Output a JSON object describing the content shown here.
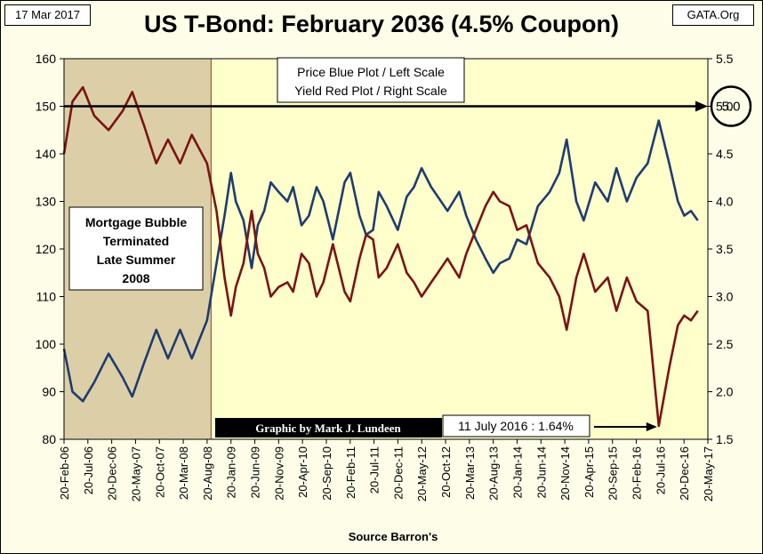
{
  "header": {
    "date": "17 Mar 2017",
    "source": "GATA.Org"
  },
  "chart_data": {
    "type": "line",
    "title": "US T-Bond: February 2036 (4.5% Coupon)",
    "xlabel": "Source Barron's",
    "legend_lines": [
      "Price Blue Plot / Left Scale",
      "Yield Red Plot / Right Scale"
    ],
    "left_axis": {
      "ylim": [
        80,
        160
      ],
      "ticks": [
        "80",
        "90",
        "100",
        "110",
        "120",
        "130",
        "140",
        "150",
        "160"
      ]
    },
    "right_axis": {
      "ylim": [
        1.5,
        5.5
      ],
      "ticks": [
        "1.5",
        "2.0",
        "2.5",
        "3.0",
        "3.5",
        "4.0",
        "4.5",
        "5.0",
        "5.5"
      ]
    },
    "x_ticks": [
      "20-Feb-06",
      "20-Jul-06",
      "20-Dec-06",
      "20-May-07",
      "20-Oct-07",
      "20-Mar-08",
      "20-Aug-08",
      "20-Jan-09",
      "20-Jun-09",
      "20-Nov-09",
      "20-Apr-10",
      "20-Sep-10",
      "20-Feb-11",
      "20-Jul-11",
      "20-Dec-11",
      "20-May-12",
      "20-Oct-12",
      "20-Mar-13",
      "20-Aug-13",
      "20-Jan-14",
      "20-Jun-14",
      "20-Nov-14",
      "20-Apr-15",
      "20-Sep-15",
      "20-Feb-16",
      "20-Jul-16",
      "20-Dec-16",
      "20-May-17"
    ],
    "grid": false,
    "series": [
      {
        "name": "Price Blue Plot / Left Scale",
        "color": "#1f3c6e",
        "axis": "left",
        "x": [
          "2006-02-20",
          "2006-04-15",
          "2006-06-20",
          "2006-09-01",
          "2006-12-01",
          "2007-03-01",
          "2007-05-01",
          "2007-07-15",
          "2007-10-01",
          "2007-12-15",
          "2008-03-01",
          "2008-05-15",
          "2008-08-20",
          "2008-10-20",
          "2008-12-10",
          "2009-01-20",
          "2009-02-20",
          "2009-04-10",
          "2009-06-01",
          "2009-07-10",
          "2009-08-20",
          "2009-10-01",
          "2009-11-20",
          "2010-01-15",
          "2010-02-20",
          "2010-04-15",
          "2010-06-01",
          "2010-07-20",
          "2010-09-01",
          "2010-11-01",
          "2011-01-15",
          "2011-02-20",
          "2011-04-20",
          "2011-06-01",
          "2011-07-15",
          "2011-08-20",
          "2011-10-10",
          "2011-12-20",
          "2012-02-15",
          "2012-04-01",
          "2012-05-20",
          "2012-07-20",
          "2012-09-01",
          "2012-11-01",
          "2013-01-15",
          "2013-03-01",
          "2013-05-01",
          "2013-07-01",
          "2013-08-20",
          "2013-10-01",
          "2013-12-01",
          "2014-01-20",
          "2014-03-20",
          "2014-06-01",
          "2014-08-15",
          "2014-10-15",
          "2014-12-01",
          "2015-02-01",
          "2015-03-20",
          "2015-06-01",
          "2015-08-20",
          "2015-10-15",
          "2015-12-20",
          "2016-02-20",
          "2016-05-01",
          "2016-07-11",
          "2016-09-15",
          "2016-11-10",
          "2016-12-20",
          "2017-02-01",
          "2017-03-17"
        ],
        "values": [
          99,
          90,
          88,
          92,
          98,
          93,
          89,
          96,
          103,
          97,
          103,
          97,
          105,
          117,
          127,
          136,
          130,
          126,
          116,
          125,
          128,
          134,
          132,
          130,
          133,
          125,
          127,
          133,
          130,
          122,
          134,
          136,
          127,
          123,
          124,
          132,
          129,
          124,
          131,
          133,
          137,
          133,
          131,
          128,
          132,
          127,
          122,
          118,
          115,
          117,
          118,
          122,
          121,
          129,
          132,
          136,
          143,
          130,
          126,
          134,
          130,
          137,
          130,
          135,
          138,
          147,
          138,
          130,
          127,
          128,
          126
        ]
      },
      {
        "name": "Yield Red Plot / Right Scale",
        "color": "#7a1414",
        "axis": "right",
        "x": [
          "2006-02-20",
          "2006-04-15",
          "2006-06-20",
          "2006-09-01",
          "2006-12-01",
          "2007-03-01",
          "2007-05-01",
          "2007-07-15",
          "2007-10-01",
          "2007-12-15",
          "2008-03-01",
          "2008-05-15",
          "2008-08-20",
          "2008-10-20",
          "2008-12-10",
          "2009-01-20",
          "2009-02-20",
          "2009-04-10",
          "2009-06-01",
          "2009-07-10",
          "2009-08-20",
          "2009-10-01",
          "2009-11-20",
          "2010-01-15",
          "2010-02-20",
          "2010-04-15",
          "2010-06-01",
          "2010-07-20",
          "2010-09-01",
          "2010-11-01",
          "2011-01-15",
          "2011-02-20",
          "2011-04-20",
          "2011-06-01",
          "2011-07-15",
          "2011-08-20",
          "2011-10-10",
          "2011-12-20",
          "2012-02-15",
          "2012-04-01",
          "2012-05-20",
          "2012-07-20",
          "2012-09-01",
          "2012-11-01",
          "2013-01-15",
          "2013-03-01",
          "2013-05-01",
          "2013-07-01",
          "2013-08-20",
          "2013-10-01",
          "2013-12-01",
          "2014-01-20",
          "2014-03-20",
          "2014-06-01",
          "2014-08-15",
          "2014-10-15",
          "2014-12-01",
          "2015-02-01",
          "2015-03-20",
          "2015-06-01",
          "2015-08-20",
          "2015-10-15",
          "2015-12-20",
          "2016-02-20",
          "2016-05-01",
          "2016-07-11",
          "2016-09-15",
          "2016-11-10",
          "2016-12-20",
          "2017-02-01",
          "2017-03-17"
        ],
        "values": [
          4.5,
          5.05,
          5.2,
          4.9,
          4.75,
          4.95,
          5.15,
          4.8,
          4.4,
          4.65,
          4.4,
          4.7,
          4.4,
          3.9,
          3.2,
          2.8,
          3.1,
          3.35,
          3.9,
          3.45,
          3.3,
          3.0,
          3.1,
          3.15,
          3.05,
          3.45,
          3.35,
          3.0,
          3.15,
          3.55,
          3.05,
          2.95,
          3.4,
          3.65,
          3.6,
          3.2,
          3.3,
          3.55,
          3.25,
          3.15,
          3.0,
          3.15,
          3.25,
          3.4,
          3.2,
          3.45,
          3.7,
          3.95,
          4.1,
          4.0,
          3.95,
          3.7,
          3.75,
          3.35,
          3.2,
          3.0,
          2.65,
          3.2,
          3.45,
          3.05,
          3.2,
          2.85,
          3.2,
          2.95,
          2.85,
          1.64,
          2.25,
          2.7,
          2.8,
          2.75,
          2.85
        ]
      }
    ],
    "annotations": {
      "shaded_region_label": [
        "Mortgage Bubble",
        "Terminated",
        "Late Summer",
        "2008"
      ],
      "credit": "Graphic by Mark J. Lundeen",
      "low_callout": "11 July 2016 : 1.64%",
      "circled_level": "5.0"
    }
  }
}
